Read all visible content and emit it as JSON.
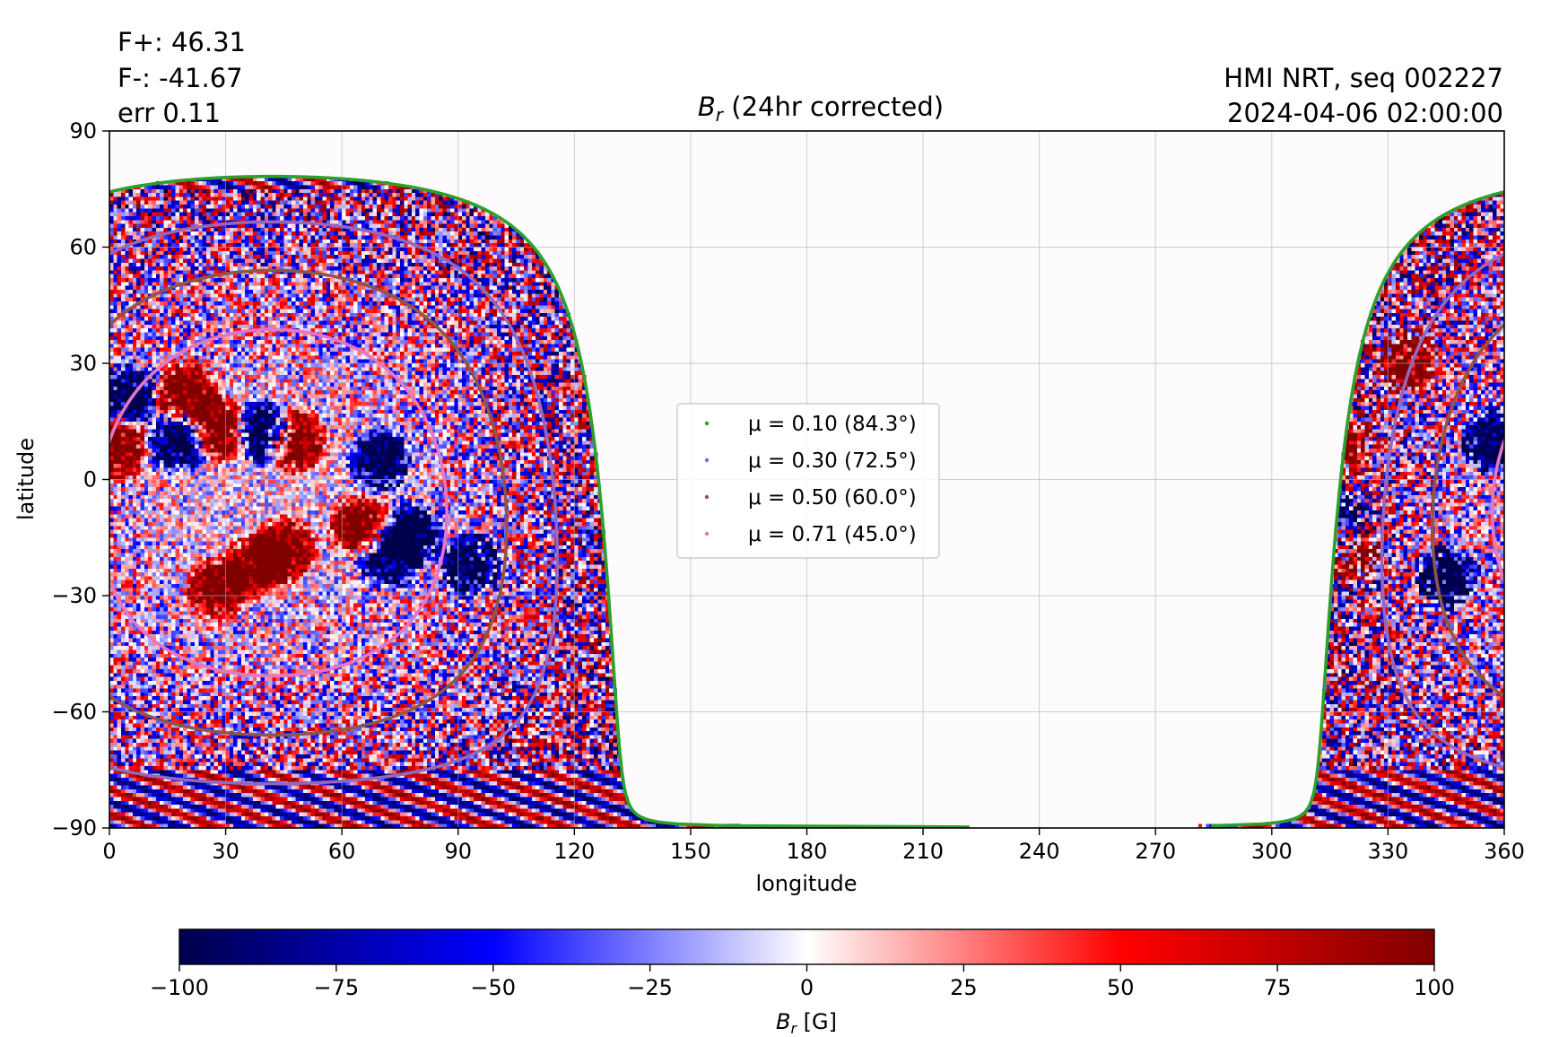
{
  "header": {
    "flux_pos": "F+: 46.31",
    "flux_neg": "F-: -41.67",
    "err": "err 0.11",
    "title_sym": "B",
    "title_sub": "r",
    "title_rest": " (24hr corrected)",
    "instrument": "HMI NRT, seq 002227",
    "timestamp": "2024-04-06 02:00:00"
  },
  "chart_data": {
    "type": "heatmap",
    "xlabel": "longitude",
    "ylabel": "latitude",
    "xlim": [
      0,
      360
    ],
    "ylim": [
      -90,
      90
    ],
    "xticks": [
      0,
      30,
      60,
      90,
      120,
      150,
      180,
      210,
      240,
      270,
      300,
      330,
      360
    ],
    "yticks": [
      -90,
      -60,
      -30,
      0,
      30,
      60,
      90
    ],
    "grid": true,
    "colormap": "seismic",
    "disk_center": {
      "lon": 42,
      "lat": -6
    },
    "contours": [
      {
        "label": "μ = 0.10 (84.3°)",
        "mu": 0.1,
        "angle": 84.3,
        "color": "#2ca02c"
      },
      {
        "label": "μ = 0.30 (72.5°)",
        "mu": 0.3,
        "angle": 72.5,
        "color": "#9467bd"
      },
      {
        "label": "μ = 0.50 (60.0°)",
        "mu": 0.5,
        "angle": 60.0,
        "color": "#8c564b"
      },
      {
        "label": "μ = 0.71 (45.0°)",
        "mu": 0.71,
        "angle": 45.0,
        "color": "#e377c2"
      }
    ],
    "legend_position": "center",
    "colorbar": {
      "min": -100,
      "max": 100,
      "ticks": [
        -100,
        -75,
        -50,
        -25,
        0,
        25,
        50,
        75,
        100
      ],
      "label_sym": "B",
      "label_sub": "r",
      "label_unit": " [G]",
      "colors": [
        "#00004c",
        "#0000ff",
        "#ffffff",
        "#ff0000",
        "#800000"
      ]
    },
    "active_regions": [
      {
        "lon": 20,
        "lat": 22,
        "sign": 1
      },
      {
        "lon": 28,
        "lat": 13,
        "sign": 1
      },
      {
        "lon": 48,
        "lat": 10,
        "sign": 1
      },
      {
        "lon": 70,
        "lat": 5,
        "sign": -1
      },
      {
        "lon": 5,
        "lat": 22,
        "sign": -1
      },
      {
        "lon": 18,
        "lat": 10,
        "sign": -1
      },
      {
        "lon": 40,
        "lat": 12,
        "sign": -1
      },
      {
        "lon": 2,
        "lat": 8,
        "sign": 1
      },
      {
        "lon": 38,
        "lat": -22,
        "sign": 1
      },
      {
        "lon": 28,
        "lat": -28,
        "sign": 1
      },
      {
        "lon": 45,
        "lat": -18,
        "sign": 1
      },
      {
        "lon": 65,
        "lat": -12,
        "sign": 1
      },
      {
        "lon": 78,
        "lat": -14,
        "sign": -1
      },
      {
        "lon": 72,
        "lat": -20,
        "sign": -1
      },
      {
        "lon": 93,
        "lat": -22,
        "sign": -1
      },
      {
        "lon": 318,
        "lat": 8,
        "sign": 1
      },
      {
        "lon": 318,
        "lat": -12,
        "sign": -1
      },
      {
        "lon": 320,
        "lat": -18,
        "sign": 1
      },
      {
        "lon": 357,
        "lat": 10,
        "sign": -1
      },
      {
        "lon": 345,
        "lat": -25,
        "sign": -1
      },
      {
        "lon": 335,
        "lat": 30,
        "sign": 1
      }
    ]
  }
}
